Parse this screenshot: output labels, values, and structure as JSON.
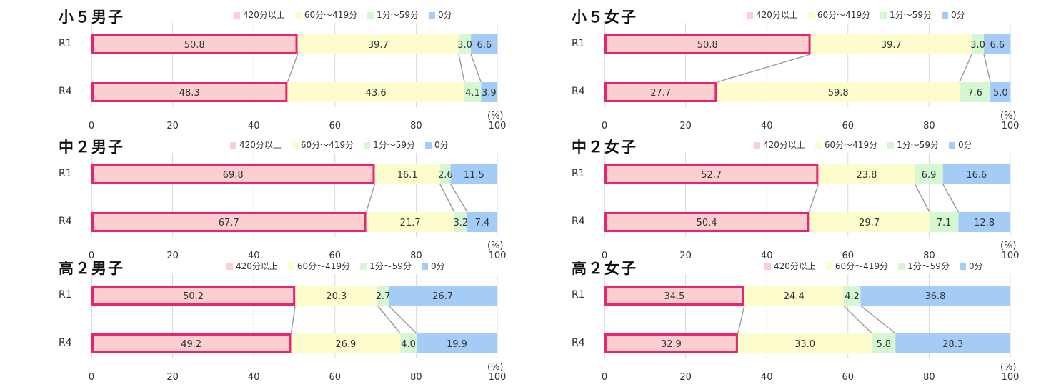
{
  "colors": {
    "420分以上": "#fbcfcf",
    "60分～419分": "#fdfccd",
    "1分～59分": "#d5f8d3",
    "0分": "#a4ccf7",
    "highlight": "#e8236f"
  },
  "chart_data": [
    {
      "type": "bar",
      "title": "小５男子",
      "orientation": "horizontal-stacked",
      "categories": [
        "R1",
        "R4"
      ],
      "series": [
        {
          "name": "420分以上",
          "values": [
            50.8,
            48.3
          ]
        },
        {
          "name": "60分～419分",
          "values": [
            39.7,
            43.6
          ]
        },
        {
          "name": "1分～59分",
          "values": [
            3.0,
            4.1
          ]
        },
        {
          "name": "0分",
          "values": [
            6.6,
            3.9
          ]
        }
      ],
      "xlim": [
        0,
        100
      ],
      "xticks": [
        "0",
        "20",
        "40",
        "60",
        "80",
        "100"
      ],
      "unit": "(%)",
      "grid": true,
      "legend": "top"
    },
    {
      "type": "bar",
      "title": "小５女子",
      "orientation": "horizontal-stacked",
      "categories": [
        "R1",
        "R4"
      ],
      "series": [
        {
          "name": "420分以上",
          "values": [
            50.8,
            27.7
          ]
        },
        {
          "name": "60分～419分",
          "values": [
            39.7,
            59.8
          ]
        },
        {
          "name": "1分～59分",
          "values": [
            3.0,
            7.6
          ]
        },
        {
          "name": "0分",
          "values": [
            6.6,
            5.0
          ]
        }
      ],
      "xlim": [
        0,
        100
      ],
      "xticks": [
        "0",
        "20",
        "40",
        "60",
        "80",
        "100"
      ],
      "unit": "(%)",
      "grid": true,
      "legend": "top"
    },
    {
      "type": "bar",
      "title": "中２男子",
      "orientation": "horizontal-stacked",
      "categories": [
        "R1",
        "R4"
      ],
      "series": [
        {
          "name": "420分以上",
          "values": [
            69.8,
            67.7
          ]
        },
        {
          "name": "60分～419分",
          "values": [
            16.1,
            21.7
          ]
        },
        {
          "name": "1分～59分",
          "values": [
            2.6,
            3.2
          ]
        },
        {
          "name": "0分",
          "values": [
            11.5,
            7.4
          ]
        }
      ],
      "xlim": [
        0,
        100
      ],
      "xticks": [
        "0",
        "20",
        "40",
        "60",
        "80",
        "100"
      ],
      "unit": "(%)",
      "grid": true,
      "legend": "top"
    },
    {
      "type": "bar",
      "title": "中２女子",
      "orientation": "horizontal-stacked",
      "categories": [
        "R1",
        "R4"
      ],
      "series": [
        {
          "name": "420分以上",
          "values": [
            52.7,
            50.4
          ]
        },
        {
          "name": "60分～419分",
          "values": [
            23.8,
            29.7
          ]
        },
        {
          "name": "1分～59分",
          "values": [
            6.9,
            7.1
          ]
        },
        {
          "name": "0分",
          "values": [
            16.6,
            12.8
          ]
        }
      ],
      "xlim": [
        0,
        100
      ],
      "xticks": [
        "0",
        "20",
        "40",
        "60",
        "80",
        "100"
      ],
      "unit": "(%)",
      "grid": true,
      "legend": "top"
    },
    {
      "type": "bar",
      "title": "高２男子",
      "orientation": "horizontal-stacked",
      "categories": [
        "R1",
        "R4"
      ],
      "series": [
        {
          "name": "420分以上",
          "values": [
            50.2,
            49.2
          ]
        },
        {
          "name": "60分～419分",
          "values": [
            20.3,
            26.9
          ]
        },
        {
          "name": "1分～59分",
          "values": [
            2.7,
            4.0
          ]
        },
        {
          "name": "0分",
          "values": [
            26.7,
            19.9
          ]
        }
      ],
      "xlim": [
        0,
        100
      ],
      "xticks": [
        "0",
        "20",
        "40",
        "60",
        "80",
        "100"
      ],
      "unit": "(%)",
      "grid": true,
      "legend": "top"
    },
    {
      "type": "bar",
      "title": "高２女子",
      "orientation": "horizontal-stacked",
      "categories": [
        "R1",
        "R4"
      ],
      "series": [
        {
          "name": "420分以上",
          "values": [
            34.5,
            32.9
          ]
        },
        {
          "name": "60分～419分",
          "values": [
            24.4,
            33.0
          ]
        },
        {
          "name": "1分～59分",
          "values": [
            4.2,
            5.8
          ]
        },
        {
          "name": "0分",
          "values": [
            36.8,
            28.3
          ]
        }
      ],
      "xlim": [
        0,
        100
      ],
      "xticks": [
        "0",
        "20",
        "40",
        "60",
        "80",
        "100"
      ],
      "unit": "(%)",
      "grid": true,
      "legend": "top"
    }
  ]
}
